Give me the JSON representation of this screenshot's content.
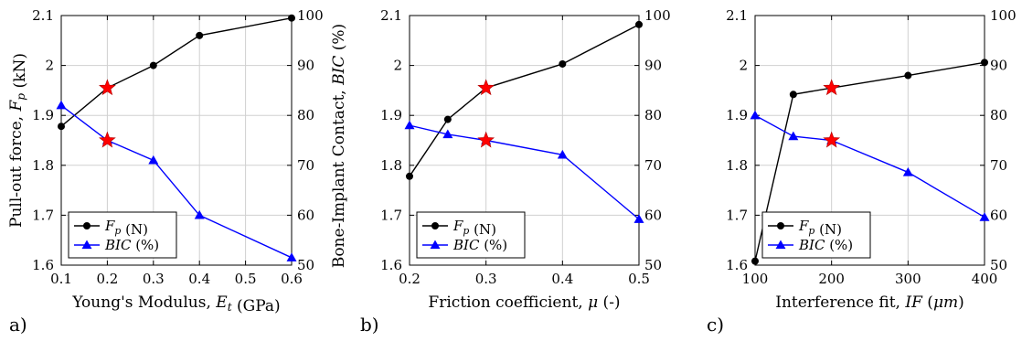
{
  "chart_data": [
    {
      "type": "line",
      "panel_label": "a)",
      "x": [
        0.1,
        0.2,
        0.3,
        0.4,
        0.6
      ],
      "x_ticks": [
        "0.1",
        "0.2",
        "0.3",
        "0.4",
        "0.5",
        "0.6"
      ],
      "x_tick_values": [
        0.1,
        0.2,
        0.3,
        0.4,
        0.5,
        0.6
      ],
      "xlim": [
        0.1,
        0.6
      ],
      "xlabel": "Young's Modulus, E_t (GPa)",
      "ylabel_left": "Pull-out force, F_p (kN)",
      "ylabel_right": "",
      "ylim_left": [
        1.6,
        2.1
      ],
      "ylim_right": [
        50,
        100
      ],
      "y_ticks_left": [
        "1.6",
        "1.7",
        "1.8",
        "1.9",
        "2",
        "2.1"
      ],
      "y_ticks_right": [
        "50",
        "60",
        "70",
        "80",
        "90",
        "100"
      ],
      "grid": true,
      "legend_position": "bottom-left",
      "series": [
        {
          "name": "F_p (N)",
          "axis": "left",
          "color": "#000000",
          "marker": "circle",
          "values": [
            1.878,
            1.955,
            2.0,
            2.06,
            2.095
          ]
        },
        {
          "name": "BIC (%)",
          "axis": "right",
          "color": "#0000ff",
          "marker": "triangle",
          "values": [
            82,
            75,
            71,
            60,
            51.5
          ]
        }
      ],
      "highlights": [
        {
          "x": 0.2,
          "axis": "left",
          "value": 1.955,
          "color": "#ff0000"
        },
        {
          "x": 0.2,
          "axis": "right",
          "value": 75,
          "color": "#ff0000"
        }
      ]
    },
    {
      "type": "line",
      "panel_label": "b)",
      "x": [
        0.2,
        0.25,
        0.3,
        0.4,
        0.5
      ],
      "x_ticks": [
        "0.2",
        "0.3",
        "0.4",
        "0.5"
      ],
      "x_tick_values": [
        0.2,
        0.3,
        0.4,
        0.5
      ],
      "xlim": [
        0.2,
        0.5
      ],
      "xlabel": "Friction coefficient, μ (-)",
      "ylabel_left": "",
      "ylabel_right": "Bone-Implant Contact, BIC (%)",
      "ylim_left": [
        1.6,
        2.1
      ],
      "ylim_right": [
        50,
        100
      ],
      "y_ticks_left": [
        "1.6",
        "1.7",
        "1.8",
        "1.9",
        "2",
        "2.1"
      ],
      "y_ticks_right": [
        "50",
        "60",
        "70",
        "80",
        "90",
        "100"
      ],
      "grid": true,
      "legend_position": "bottom-left",
      "series": [
        {
          "name": "F_p (N)",
          "axis": "left",
          "color": "#000000",
          "marker": "circle",
          "values": [
            1.778,
            1.892,
            1.955,
            2.003,
            2.082
          ]
        },
        {
          "name": "BIC (%)",
          "axis": "right",
          "color": "#0000ff",
          "marker": "triangle",
          "values": [
            78,
            76.2,
            75,
            72.1,
            59.2
          ]
        }
      ],
      "highlights": [
        {
          "x": 0.3,
          "axis": "left",
          "value": 1.955,
          "color": "#ff0000"
        },
        {
          "x": 0.3,
          "axis": "right",
          "value": 75,
          "color": "#ff0000"
        }
      ]
    },
    {
      "type": "line",
      "panel_label": "c)",
      "x": [
        100,
        150,
        200,
        300,
        400
      ],
      "x_ticks": [
        "100",
        "200",
        "300",
        "400"
      ],
      "x_tick_values": [
        100,
        200,
        300,
        400
      ],
      "xlim": [
        100,
        400
      ],
      "xlabel": "Interference fit, IF (μm)",
      "ylabel_left": "",
      "ylabel_right": "",
      "ylim_left": [
        1.6,
        2.1
      ],
      "ylim_right": [
        50,
        100
      ],
      "y_ticks_left": [
        "1.6",
        "1.7",
        "1.8",
        "1.9",
        "2",
        "2.1"
      ],
      "y_ticks_right": [
        "50",
        "60",
        "70",
        "80",
        "90",
        "100"
      ],
      "grid": true,
      "legend_position": "bottom-left",
      "series": [
        {
          "name": "F_p (N)",
          "axis": "left",
          "color": "#000000",
          "marker": "circle",
          "values": [
            1.608,
            1.942,
            1.955,
            1.98,
            2.006
          ]
        },
        {
          "name": "BIC (%)",
          "axis": "right",
          "color": "#0000ff",
          "marker": "triangle",
          "values": [
            80,
            75.8,
            75,
            68.6,
            59.6
          ]
        }
      ],
      "highlights": [
        {
          "x": 200,
          "axis": "left",
          "value": 1.955,
          "color": "#ff0000"
        },
        {
          "x": 200,
          "axis": "right",
          "value": 75,
          "color": "#ff0000"
        }
      ]
    }
  ]
}
